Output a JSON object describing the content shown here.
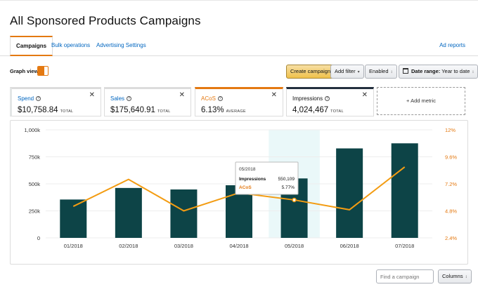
{
  "page": {
    "title": "All Sponsored Products Campaigns"
  },
  "tabs": [
    {
      "label": "Campaigns",
      "active": true
    },
    {
      "label": "Bulk operations",
      "active": false
    },
    {
      "label": "Advertising Settings",
      "active": false
    }
  ],
  "ad_reports_label": "Ad reports",
  "toolbar": {
    "graph_view_label": "Graph view",
    "create_campaign_label": "Create campaign",
    "add_filter_label": "Add filter",
    "enabled_label": "Enabled",
    "date_range_label": "Date range:",
    "date_range_value": "Year to date"
  },
  "metrics": [
    {
      "name": "Spend",
      "value": "$10,758.84",
      "unit": "TOTAL"
    },
    {
      "name": "Sales",
      "value": "$175,640.91",
      "unit": "TOTAL"
    },
    {
      "name": "ACoS",
      "value": "6.13%",
      "unit": "AVERAGE"
    },
    {
      "name": "Impressions",
      "value": "4,024,467",
      "unit": "TOTAL"
    }
  ],
  "add_metric_label": "+ Add metric",
  "chart_data": {
    "type": "bar",
    "categories": [
      "01/2018",
      "02/2018",
      "03/2018",
      "04/2018",
      "05/2018",
      "06/2018",
      "07/2018"
    ],
    "y_left": {
      "ticks": [
        "0",
        "250k",
        "500k",
        "750k",
        "1,000k"
      ],
      "range": [
        0,
        1000000
      ]
    },
    "y_right": {
      "ticks": [
        "2.4%",
        "4.8%",
        "7.2%",
        "9.6%",
        "12%"
      ],
      "range": [
        2.4,
        12
      ]
    },
    "series": [
      {
        "name": "Impressions",
        "type": "bar",
        "values": [
          355000,
          462000,
          448000,
          487000,
          550109,
          828000,
          875000
        ],
        "color": "#0d4447"
      },
      {
        "name": "ACoS",
        "type": "line",
        "values": [
          5.2,
          7.6,
          4.8,
          6.4,
          5.77,
          4.9,
          8.7
        ],
        "color": "#f39c12"
      }
    ],
    "highlight_index": 4,
    "tooltip": {
      "month": "05/2018",
      "rows": [
        {
          "label": "Impressions",
          "value": "550,109"
        },
        {
          "label": "ACoS",
          "value": "5.77%"
        }
      ]
    }
  },
  "table_controls": {
    "find_placeholder": "Find a campaign",
    "columns_label": "Columns"
  }
}
